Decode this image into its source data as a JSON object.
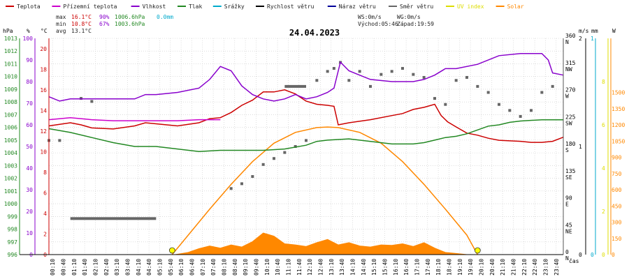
{
  "colors": {
    "temperature": "#cc0000",
    "feels_like": "#cc00cc",
    "humidity": "#8800cc",
    "pressure": "#228822",
    "precipitation": "#00aacc",
    "wind_speed": "#000000",
    "gust": "#000099",
    "wind_direction": "#666666",
    "uv": "#dddd00",
    "solar": "#ff8800",
    "grid": "#c8c8c8"
  },
  "legend": [
    {
      "label": "Teplota",
      "color_key": "temperature"
    },
    {
      "label": "Přízemní teplota",
      "color_key": "feels_like"
    },
    {
      "label": "Vlhkost",
      "color_key": "humidity"
    },
    {
      "label": "Tlak",
      "color_key": "pressure"
    },
    {
      "label": "Srážky",
      "color_key": "precipitation"
    },
    {
      "label": "Rychlost větru",
      "color_key": "wind_speed"
    },
    {
      "label": "Náraz větru",
      "color_key": "gust"
    },
    {
      "label": "Směr větru",
      "color_key": "wind_direction"
    },
    {
      "label": "UV index",
      "color_key": "uv"
    },
    {
      "label": "Solar",
      "color_key": "solar"
    }
  ],
  "stats": {
    "max_label": "max",
    "max_temp": "16.1°C",
    "max_hum": "90%",
    "max_press": "1006.6hPa",
    "max_rain": "0.0mm",
    "min_label": "min",
    "min_temp": "10.8°C",
    "min_hum": "67%",
    "min_press": "1003.6hPa",
    "avg_label": "avg",
    "avg_temp": "13.1°C",
    "ws": "WS:0m/s",
    "wg": "WG:0m/s",
    "sunrise": "Východ:05:46",
    "sunset": "Západ:19:59"
  },
  "chart_data": {
    "type": "line",
    "title": "24.04.2023",
    "x_label": "čas",
    "x_ticks": [
      "00:10",
      "00:40",
      "01:10",
      "01:40",
      "02:10",
      "02:40",
      "03:10",
      "03:40",
      "04:10",
      "04:40",
      "05:10",
      "05:40",
      "06:10",
      "06:40",
      "07:10",
      "07:40",
      "08:10",
      "08:40",
      "09:10",
      "09:40",
      "10:10",
      "10:40",
      "11:10",
      "11:40",
      "12:10",
      "12:40",
      "13:10",
      "13:40",
      "14:10",
      "14:40",
      "15:10",
      "15:40",
      "16:10",
      "16:40",
      "17:10",
      "17:40",
      "18:10",
      "18:40",
      "19:10",
      "19:40",
      "20:10",
      "20:40",
      "21:10",
      "21:40",
      "22:10",
      "22:40",
      "23:10",
      "23:40"
    ],
    "axes": {
      "pressure": {
        "unit": "hPa",
        "range": [
          996,
          1013
        ],
        "ticks": [
          996,
          997,
          998,
          999,
          1000,
          1001,
          1002,
          1003,
          1004,
          1005,
          1006,
          1007,
          1008,
          1009,
          1010,
          1011,
          1012,
          1013
        ]
      },
      "humidity": {
        "unit": "%",
        "range": [
          0,
          100
        ],
        "ticks": [
          0,
          10,
          20,
          30,
          40,
          50,
          60,
          70,
          80,
          90,
          100
        ]
      },
      "temperature": {
        "unit": "°C",
        "range": [
          0,
          21
        ],
        "ticks": [
          0,
          2,
          4,
          6,
          8,
          10,
          12,
          14,
          16,
          18,
          20
        ]
      },
      "wind_direction": {
        "range": [
          0,
          360
        ],
        "ticks": [
          {
            "v": 0,
            "deg": "0",
            "dir": "N"
          },
          {
            "v": 45,
            "deg": "45",
            "dir": "NE"
          },
          {
            "v": 90,
            "deg": "90",
            "dir": "E"
          },
          {
            "v": 135,
            "deg": "135",
            "dir": "SE"
          },
          {
            "v": 180,
            "deg": "180",
            "dir": "S"
          },
          {
            "v": 225,
            "deg": "225",
            "dir": "SW"
          },
          {
            "v": 270,
            "deg": "270",
            "dir": "W"
          },
          {
            "v": 315,
            "deg": "315",
            "dir": "NW"
          },
          {
            "v": 360,
            "deg": "360",
            "dir": "N"
          }
        ]
      },
      "wind_speed": {
        "unit": "m/s",
        "range": [
          0,
          2
        ],
        "ticks": [
          "0",
          "1",
          "2"
        ]
      },
      "rain": {
        "unit": "mm",
        "range": [
          0,
          1
        ],
        "ticks": [
          "0",
          "1"
        ]
      },
      "uv": {
        "unit": "",
        "range": [
          0,
          10
        ],
        "ticks": [
          "0",
          "2",
          "4",
          "6",
          "8"
        ]
      },
      "solar": {
        "unit": "W",
        "range": [
          0,
          2000
        ],
        "ticks": [
          "0",
          "150",
          "300",
          "450",
          "600",
          "750",
          "900",
          "1050",
          "1200",
          "1350",
          "1500"
        ]
      }
    },
    "series": [
      {
        "name": "Teplota",
        "axis": "temperature",
        "color_key": "temperature",
        "points": [
          [
            0,
            12.5
          ],
          [
            1,
            12.8
          ],
          [
            1.5,
            12.6
          ],
          [
            2,
            12.3
          ],
          [
            3,
            12.2
          ],
          [
            4,
            12.5
          ],
          [
            4.5,
            12.8
          ],
          [
            5,
            12.7
          ],
          [
            6,
            12.5
          ],
          [
            7,
            12.8
          ],
          [
            7.5,
            13.2
          ],
          [
            8,
            13.3
          ],
          [
            8.5,
            13.8
          ],
          [
            9,
            14.5
          ],
          [
            9.5,
            15.0
          ],
          [
            10,
            15.8
          ],
          [
            10.5,
            15.8
          ],
          [
            11,
            16.0
          ],
          [
            11.5,
            15.6
          ],
          [
            12,
            14.9
          ],
          [
            12.5,
            14.6
          ],
          [
            13,
            14.5
          ],
          [
            13.3,
            14.4
          ],
          [
            13.5,
            12.6
          ],
          [
            14,
            12.8
          ],
          [
            15,
            13.1
          ],
          [
            16,
            13.5
          ],
          [
            16.5,
            13.7
          ],
          [
            17,
            14.1
          ],
          [
            17.5,
            14.3
          ],
          [
            18,
            14.6
          ],
          [
            18.3,
            13.5
          ],
          [
            18.6,
            12.9
          ],
          [
            19,
            12.4
          ],
          [
            19.5,
            11.8
          ],
          [
            20,
            11.6
          ],
          [
            20.5,
            11.3
          ],
          [
            21,
            11.1
          ],
          [
            22,
            11.0
          ],
          [
            22.5,
            10.9
          ],
          [
            23,
            10.9
          ],
          [
            23.5,
            11.0
          ],
          [
            24,
            11.4
          ]
        ]
      },
      {
        "name": "Přízemní teplota",
        "axis": "temperature",
        "color_key": "feels_like",
        "points": [
          [
            0,
            13.1
          ],
          [
            1,
            13.3
          ],
          [
            2,
            13.1
          ],
          [
            3,
            13.0
          ],
          [
            4,
            13.0
          ],
          [
            5,
            13.0
          ],
          [
            6,
            13.0
          ],
          [
            7,
            13.1
          ],
          [
            8,
            13.1
          ]
        ]
      },
      {
        "name": "Vlhkost",
        "axis": "humidity",
        "color_key": "humidity",
        "points": [
          [
            0,
            73
          ],
          [
            0.5,
            71
          ],
          [
            1,
            72
          ],
          [
            2,
            72
          ],
          [
            3,
            72
          ],
          [
            4,
            72
          ],
          [
            4.5,
            74
          ],
          [
            5,
            74
          ],
          [
            6,
            75
          ],
          [
            7,
            77
          ],
          [
            7.5,
            81
          ],
          [
            8,
            87
          ],
          [
            8.5,
            85
          ],
          [
            9,
            78
          ],
          [
            9.5,
            74
          ],
          [
            10,
            72
          ],
          [
            10.5,
            71
          ],
          [
            11,
            72
          ],
          [
            11.5,
            74
          ],
          [
            12,
            72
          ],
          [
            12.5,
            73
          ],
          [
            13,
            75
          ],
          [
            13.3,
            77
          ],
          [
            13.6,
            89
          ],
          [
            14,
            85
          ],
          [
            15,
            81
          ],
          [
            16,
            80
          ],
          [
            17,
            80
          ],
          [
            17.5,
            81
          ],
          [
            18,
            83
          ],
          [
            18.5,
            86
          ],
          [
            19,
            86
          ],
          [
            20,
            88
          ],
          [
            21,
            92
          ],
          [
            22,
            93
          ],
          [
            23,
            93
          ],
          [
            23.3,
            90
          ],
          [
            23.5,
            84
          ],
          [
            24,
            83
          ]
        ]
      },
      {
        "name": "Tlak",
        "axis": "pressure",
        "color_key": "pressure",
        "points": [
          [
            0,
            1005.9
          ],
          [
            1,
            1005.6
          ],
          [
            2,
            1005.2
          ],
          [
            3,
            1004.8
          ],
          [
            4,
            1004.5
          ],
          [
            5,
            1004.5
          ],
          [
            6,
            1004.3
          ],
          [
            7,
            1004.1
          ],
          [
            8,
            1004.2
          ],
          [
            9,
            1004.2
          ],
          [
            10,
            1004.2
          ],
          [
            11,
            1004.3
          ],
          [
            12,
            1004.6
          ],
          [
            12.5,
            1004.9
          ],
          [
            13,
            1005.0
          ],
          [
            14,
            1005.1
          ],
          [
            15,
            1004.9
          ],
          [
            16,
            1004.7
          ],
          [
            17,
            1004.7
          ],
          [
            17.5,
            1004.8
          ],
          [
            18,
            1005.0
          ],
          [
            18.5,
            1005.2
          ],
          [
            19,
            1005.3
          ],
          [
            19.5,
            1005.5
          ],
          [
            20,
            1005.8
          ],
          [
            20.5,
            1006.1
          ],
          [
            21,
            1006.2
          ],
          [
            21.5,
            1006.4
          ],
          [
            22,
            1006.5
          ],
          [
            23,
            1006.6
          ],
          [
            24,
            1006.6
          ]
        ]
      },
      {
        "name": "Rychlost větru",
        "axis": "wind_speed",
        "color_key": "wind_speed",
        "points": [
          [
            0,
            0
          ],
          [
            24,
            0
          ]
        ]
      },
      {
        "name": "Náraz větru",
        "axis": "wind_speed",
        "color_key": "gust",
        "points": [
          [
            0,
            0
          ],
          [
            24,
            0
          ]
        ]
      },
      {
        "name": "Srážky",
        "axis": "rain",
        "color_key": "precipitation",
        "points": [
          [
            0,
            0
          ],
          [
            24,
            0
          ]
        ]
      },
      {
        "name": "Solar",
        "axis": "solar",
        "color_key": "solar",
        "points": [
          [
            5.9,
            0
          ],
          [
            6.5,
            20
          ],
          [
            7,
            55
          ],
          [
            7.5,
            80
          ],
          [
            8,
            60
          ],
          [
            8.5,
            90
          ],
          [
            9,
            70
          ],
          [
            9.5,
            120
          ],
          [
            10,
            200
          ],
          [
            10.5,
            170
          ],
          [
            11,
            100
          ],
          [
            11.5,
            90
          ],
          [
            12,
            75
          ],
          [
            12.5,
            110
          ],
          [
            13,
            140
          ],
          [
            13.5,
            90
          ],
          [
            14,
            110
          ],
          [
            14.5,
            80
          ],
          [
            15,
            70
          ],
          [
            15.5,
            90
          ],
          [
            16,
            85
          ],
          [
            16.5,
            100
          ],
          [
            17,
            75
          ],
          [
            17.5,
            110
          ],
          [
            18,
            60
          ],
          [
            18.5,
            20
          ],
          [
            19,
            10
          ],
          [
            19.5,
            0
          ]
        ]
      },
      {
        "name": "Solar max",
        "axis": "solar",
        "color_key": "solar",
        "points": [
          [
            5.75,
            0
          ],
          [
            6.5,
            180
          ],
          [
            7.5,
            420
          ],
          [
            8.5,
            650
          ],
          [
            9.5,
            860
          ],
          [
            10.5,
            1030
          ],
          [
            11.5,
            1130
          ],
          [
            12.5,
            1175
          ],
          [
            13,
            1180
          ],
          [
            13.5,
            1175
          ],
          [
            14.5,
            1130
          ],
          [
            15.5,
            1030
          ],
          [
            16.5,
            860
          ],
          [
            17.5,
            650
          ],
          [
            18.5,
            420
          ],
          [
            19.5,
            180
          ],
          [
            20,
            0
          ]
        ]
      }
    ],
    "wind_direction_points": [
      [
        0,
        190
      ],
      [
        0.5,
        190
      ],
      [
        1.5,
        260
      ],
      [
        2,
        255
      ],
      [
        8.5,
        110
      ],
      [
        9,
        118
      ],
      [
        9.5,
        130
      ],
      [
        10,
        150
      ],
      [
        10.5,
        160
      ],
      [
        11,
        170
      ],
      [
        11.5,
        180
      ],
      [
        12,
        190
      ],
      [
        12.5,
        290
      ],
      [
        13,
        305
      ],
      [
        13.3,
        310
      ],
      [
        13.6,
        320
      ],
      [
        14,
        290
      ],
      [
        14.5,
        305
      ],
      [
        15,
        280
      ],
      [
        15.5,
        300
      ],
      [
        16,
        305
      ],
      [
        16.5,
        310
      ],
      [
        17,
        300
      ],
      [
        17.5,
        295
      ],
      [
        18,
        260
      ],
      [
        18.5,
        250
      ],
      [
        19,
        290
      ],
      [
        19.5,
        295
      ],
      [
        20,
        280
      ],
      [
        20.5,
        270
      ],
      [
        21,
        250
      ],
      [
        21.5,
        240
      ],
      [
        22,
        230
      ],
      [
        22.5,
        240
      ],
      [
        23,
        270
      ],
      [
        23.5,
        280
      ]
    ],
    "wind_direction_bars": [
      [
        1,
        5,
        60
      ],
      [
        11,
        12,
        280
      ]
    ],
    "uv_markers": [
      5.75,
      20.0
    ]
  }
}
